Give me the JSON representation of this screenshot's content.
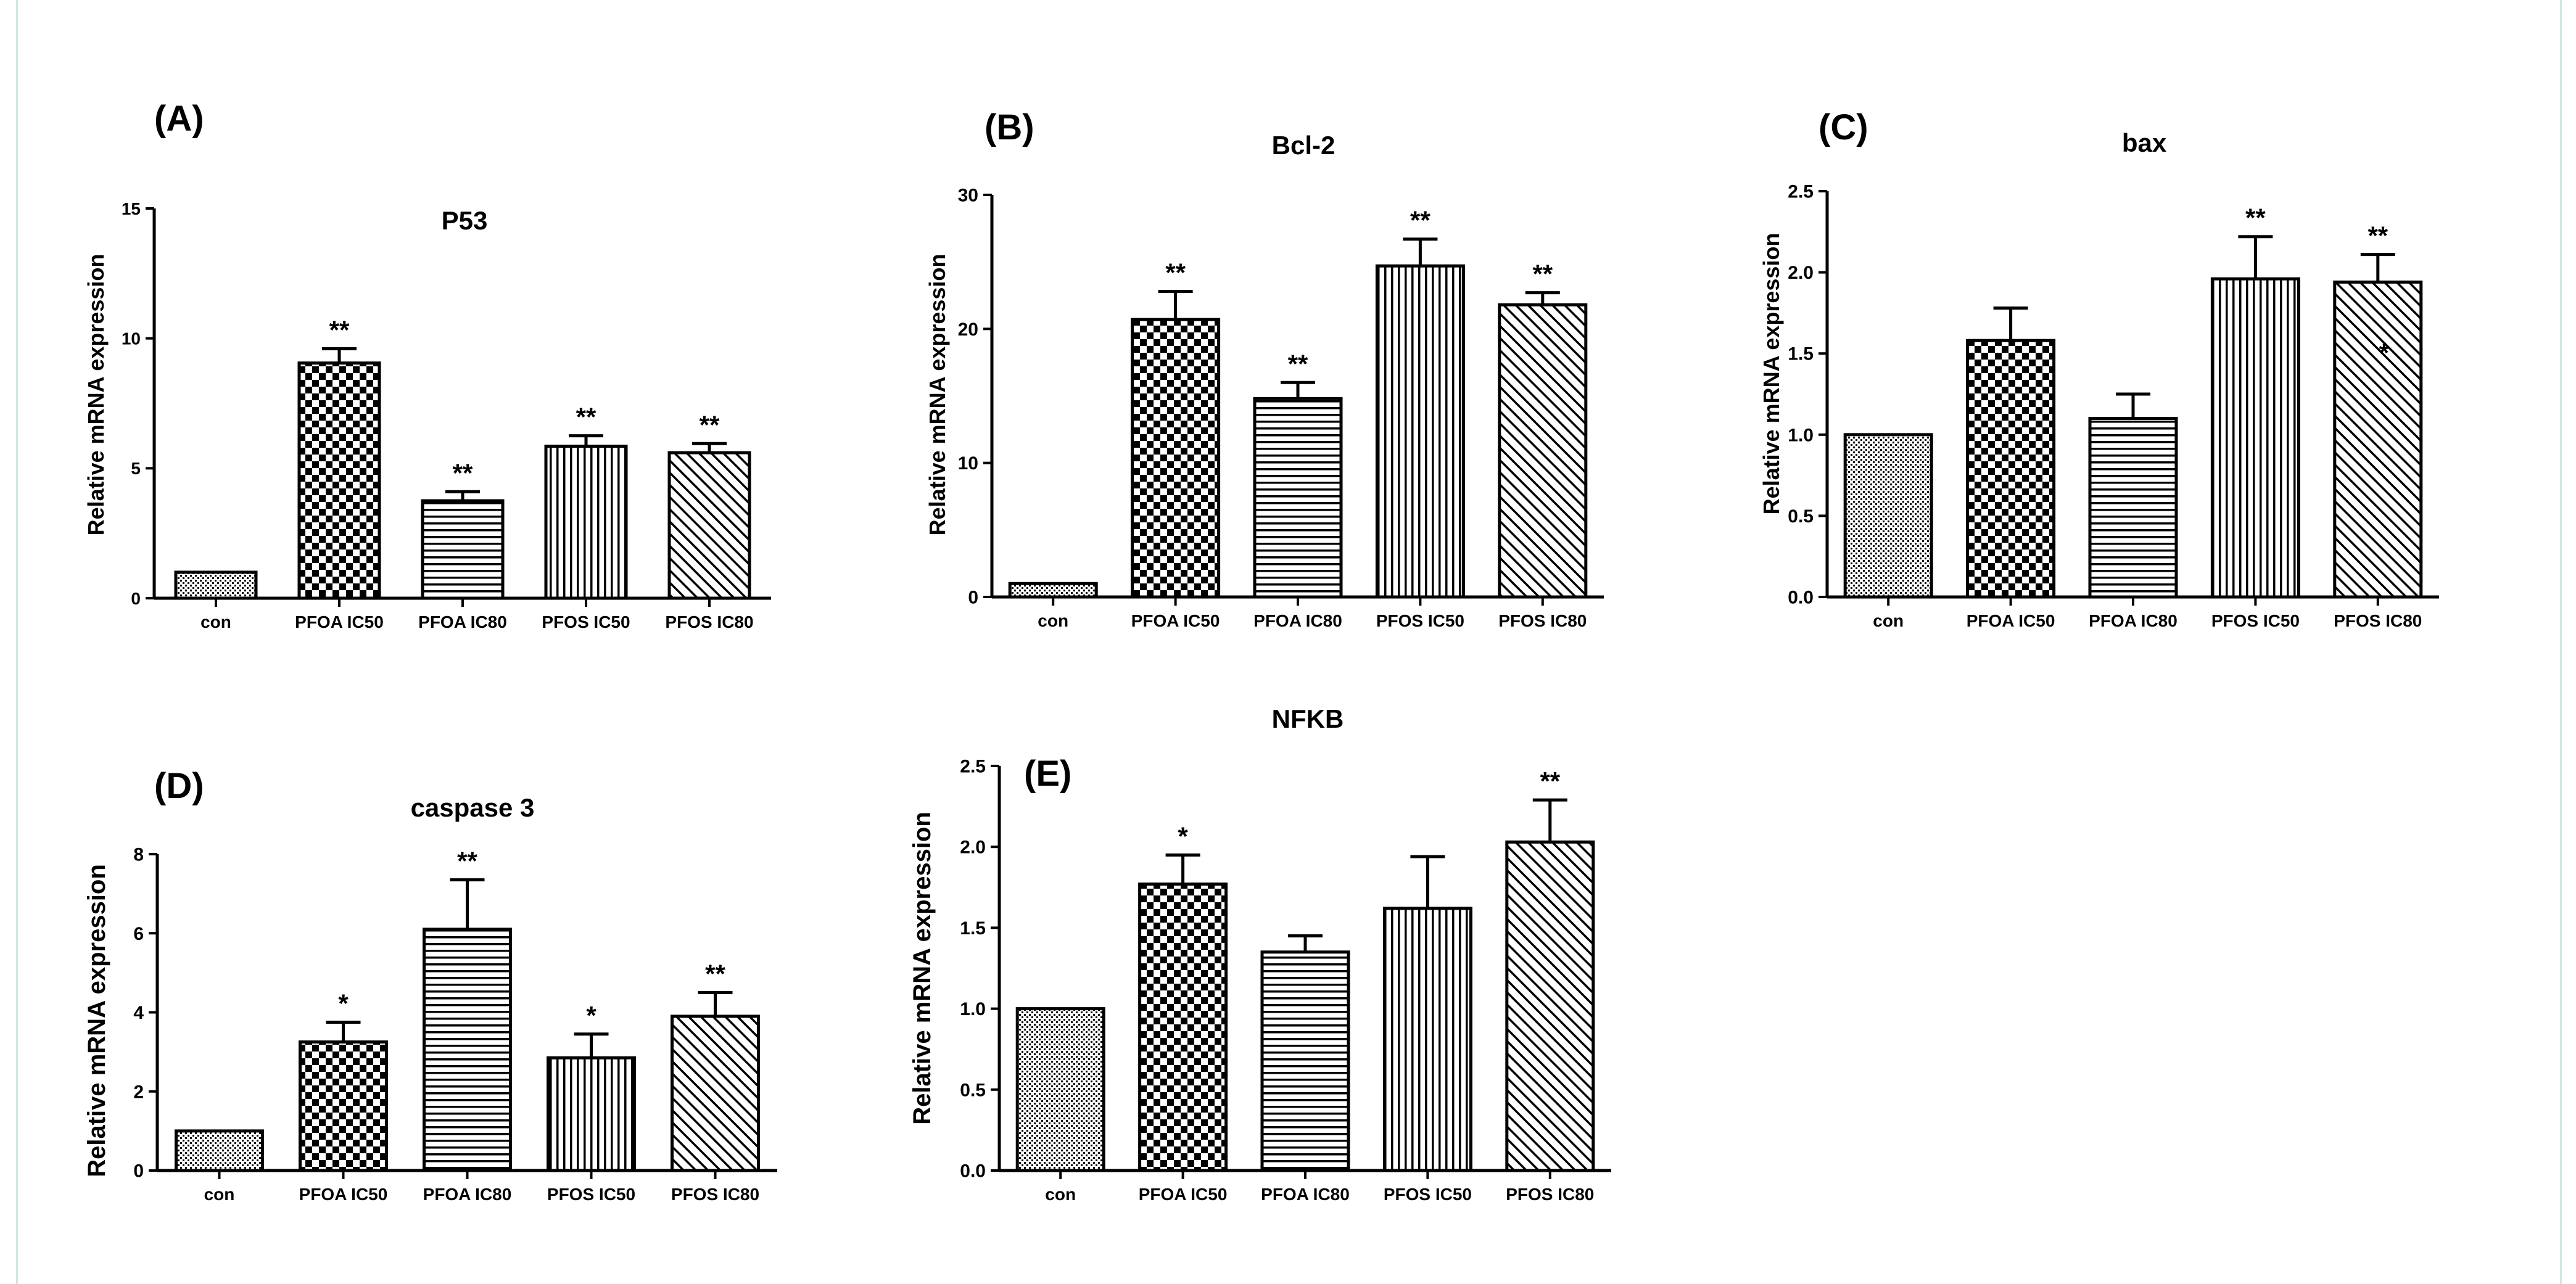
{
  "figure_title": "",
  "chart_data": [
    {
      "panel": "(A)",
      "type": "bar",
      "title": "P53",
      "ylabel": "Relative mRNA expression",
      "xlabel": "",
      "categories": [
        "con",
        "PFOA IC50",
        "PFOA IC80",
        "PFOS IC50",
        "PFOS IC80"
      ],
      "values": [
        1.0,
        9.05,
        3.75,
        5.85,
        5.6
      ],
      "errors": [
        0,
        0.55,
        0.35,
        0.4,
        0.35
      ],
      "significance": [
        "",
        "**",
        "**",
        "**",
        "**"
      ],
      "ylim": [
        0,
        15
      ],
      "yticks": [
        0,
        5,
        10,
        15
      ],
      "ytick_labels": [
        "0",
        "5",
        "10",
        "15"
      ]
    },
    {
      "panel": "(B)",
      "type": "bar",
      "title": "Bcl-2",
      "ylabel": "Relative mRNA expression",
      "xlabel": "",
      "categories": [
        "con",
        "PFOA IC50",
        "PFOA IC80",
        "PFOS IC50",
        "PFOS IC80"
      ],
      "values": [
        1.0,
        20.7,
        14.8,
        24.7,
        21.8
      ],
      "errors": [
        0,
        2.1,
        1.2,
        2.0,
        0.9
      ],
      "significance": [
        "",
        "**",
        "**",
        "**",
        "**"
      ],
      "ylim": [
        0,
        30
      ],
      "yticks": [
        0,
        10,
        20,
        30
      ],
      "ytick_labels": [
        "0",
        "10",
        "20",
        "30"
      ]
    },
    {
      "panel": "(C)",
      "type": "bar",
      "title": "bax",
      "ylabel": "Relative mRNA expression",
      "xlabel": "",
      "categories": [
        "con",
        "PFOA IC50",
        "PFOA IC80",
        "PFOS IC50",
        "PFOS IC80"
      ],
      "values": [
        1.0,
        1.58,
        1.1,
        1.96,
        1.94
      ],
      "errors": [
        0,
        0.2,
        0.15,
        0.26,
        0.17
      ],
      "significance": [
        "",
        "",
        "",
        "**",
        "**"
      ],
      "extra_marks": [
        {
          "category_index": 4,
          "y": 1.45,
          "text": "*"
        }
      ],
      "ylim": [
        0,
        2.5
      ],
      "yticks": [
        0,
        0.5,
        1.0,
        1.5,
        2.0,
        2.5
      ],
      "ytick_labels": [
        "0.0",
        "0.5",
        "1.0",
        "1.5",
        "2.0",
        "2.5"
      ]
    },
    {
      "panel": "(D)",
      "type": "bar",
      "title": "caspase 3",
      "ylabel": "Relative mRNA expression",
      "xlabel": "",
      "categories": [
        "con",
        "PFOA IC50",
        "PFOA IC80",
        "PFOS IC50",
        "PFOS IC80"
      ],
      "values": [
        1.0,
        3.25,
        6.1,
        2.85,
        3.9
      ],
      "errors": [
        0,
        0.5,
        1.25,
        0.6,
        0.6
      ],
      "significance": [
        "",
        "*",
        "**",
        "*",
        "**"
      ],
      "ylim": [
        0,
        8
      ],
      "yticks": [
        0,
        2,
        4,
        6,
        8
      ],
      "ytick_labels": [
        "0",
        "2",
        "4",
        "6",
        "8"
      ]
    },
    {
      "panel": "(E)",
      "type": "bar",
      "title": "NFKB",
      "ylabel": "Relative mRNA expression",
      "xlabel": "",
      "categories": [
        "con",
        "PFOA IC50",
        "PFOA IC80",
        "PFOS IC50",
        "PFOS IC80"
      ],
      "values": [
        1.0,
        1.77,
        1.35,
        1.62,
        2.03
      ],
      "errors": [
        0,
        0.18,
        0.1,
        0.32,
        0.26
      ],
      "significance": [
        "",
        "*",
        "",
        "",
        "**"
      ],
      "ylim": [
        0,
        2.5
      ],
      "yticks": [
        0,
        0.5,
        1.0,
        1.5,
        2.0,
        2.5
      ],
      "ytick_labels": [
        "0.0",
        "0.5",
        "1.0",
        "1.5",
        "2.0",
        "2.5"
      ]
    }
  ],
  "bar_patterns": [
    "dots",
    "checker",
    "hlines",
    "vlines",
    "diagonal"
  ],
  "colors": {
    "ink": "#000000",
    "background": "#ffffff",
    "frame_accent": "#cfe9dc"
  }
}
